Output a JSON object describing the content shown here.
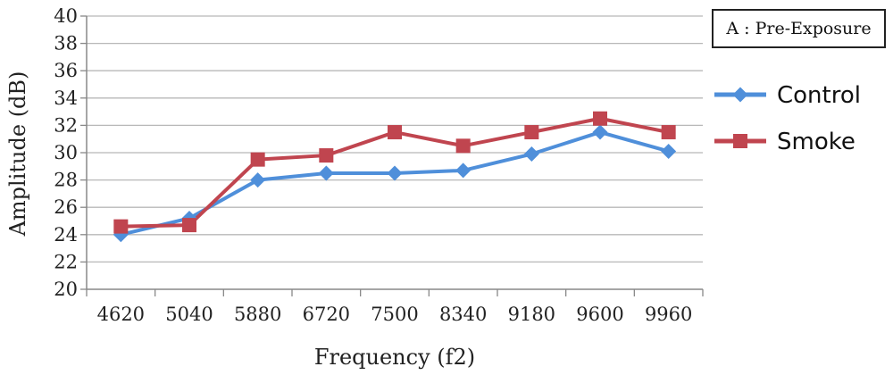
{
  "chart_data": {
    "type": "line",
    "categories": [
      "4620",
      "5040",
      "5880",
      "6720",
      "7500",
      "8340",
      "9180",
      "9600",
      "9960"
    ],
    "series": [
      {
        "name": "Control",
        "color": "#4F8FDA",
        "marker": "diamond",
        "values": [
          24.0,
          25.2,
          28.0,
          28.5,
          28.5,
          28.7,
          29.9,
          31.5,
          30.1
        ]
      },
      {
        "name": "Smoke",
        "color": "#C0454F",
        "marker": "square",
        "values": [
          24.6,
          24.7,
          29.5,
          29.8,
          31.5,
          30.5,
          31.5,
          32.5,
          31.5
        ]
      }
    ],
    "xlabel": "Frequency (f2)",
    "ylabel": "Amplitude (dB)",
    "ylim": [
      20,
      40
    ],
    "yticks": [
      20,
      22,
      24,
      26,
      28,
      30,
      32,
      34,
      36,
      38,
      40
    ],
    "grid": true,
    "legend_position": "right",
    "annotation": "A : Pre-Exposure"
  }
}
